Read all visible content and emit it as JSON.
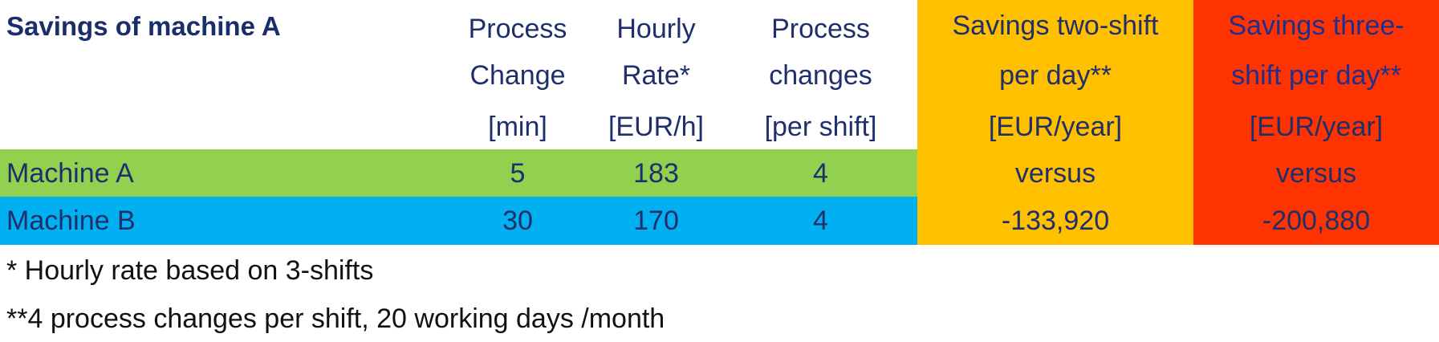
{
  "title": "Savings of machine A",
  "headers": {
    "process_change": [
      "Process",
      "Change",
      "[min]"
    ],
    "hourly_rate": [
      "Hourly",
      "Rate*",
      "[EUR/h]"
    ],
    "process_changes": [
      "Process",
      "changes",
      "[per shift]"
    ],
    "savings_two_shift": [
      "Savings two-shift",
      "per day**",
      "[EUR/year]"
    ],
    "savings_three_shift": [
      "Savings three-",
      "shift per day**",
      "[EUR/year]"
    ]
  },
  "rows": [
    {
      "name": "Machine A",
      "process_change": "5",
      "hourly_rate": "183",
      "process_changes": "4",
      "savings_two_shift": "versus",
      "savings_three_shift": "versus"
    },
    {
      "name": "Machine B",
      "process_change": "30",
      "hourly_rate": "170",
      "process_changes": "4",
      "savings_two_shift": "-133,920",
      "savings_three_shift": "-200,880"
    }
  ],
  "footnotes": [
    "* Hourly rate based on 3-shifts",
    "**4 process changes per shift, 20 working days /month"
  ],
  "colors": {
    "machine_a_row": "#92d050",
    "machine_b_row": "#00b0f0",
    "two_shift_column": "#ffc000",
    "three_shift_column": "#ff3300",
    "text": "#1f2f6b"
  }
}
